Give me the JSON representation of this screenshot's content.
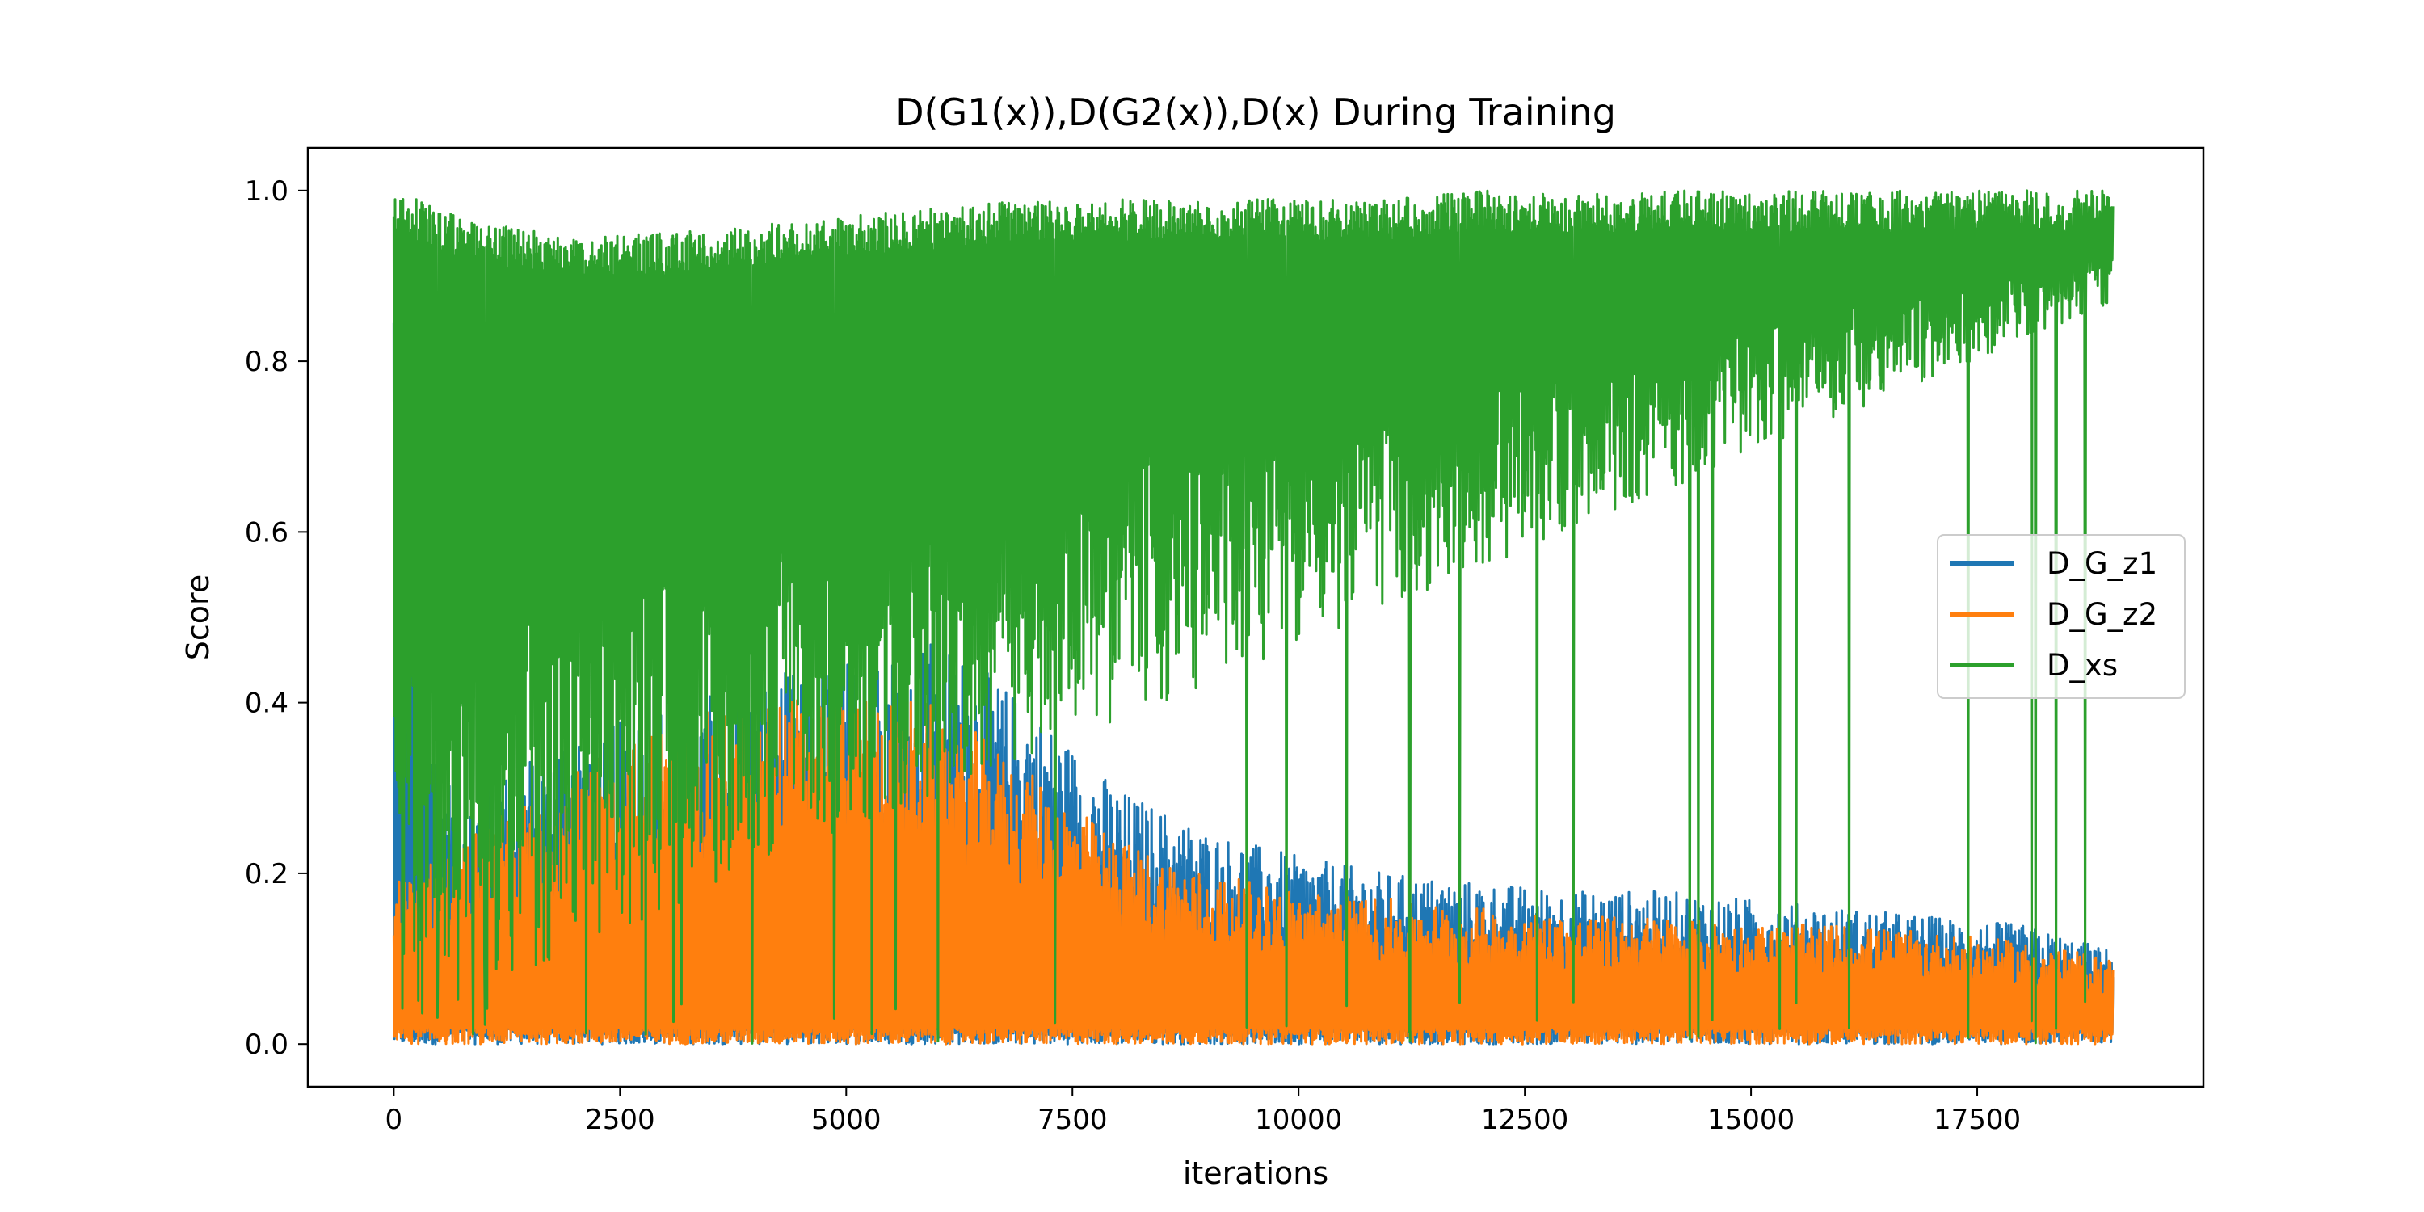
{
  "colors": {
    "D_G_z1": "#1f77b4",
    "D_G_z2": "#ff7f0e",
    "D_xs": "#2ca02c",
    "frame": "#000000",
    "legend_border": "#cccccc"
  },
  "chart_data": {
    "type": "line",
    "title": "D(G1(x)),D(G2(x)),D(x) During Training",
    "xlabel": "iterations",
    "ylabel": "Score",
    "xlim": [
      -950,
      20000
    ],
    "ylim": [
      -0.05,
      1.05
    ],
    "x_ticks": [
      0,
      2500,
      5000,
      7500,
      10000,
      12500,
      15000,
      17500
    ],
    "x_tick_labels": [
      "0",
      "2500",
      "5000",
      "7500",
      "10000",
      "12500",
      "15000",
      "17500"
    ],
    "y_ticks": [
      0.0,
      0.2,
      0.4,
      0.6,
      0.8,
      1.0
    ],
    "y_tick_labels": [
      "0.0",
      "0.2",
      "0.4",
      "0.6",
      "0.8",
      "1.0"
    ],
    "grid": false,
    "legend_position": "center-right",
    "series": [
      {
        "name": "D_G_z1",
        "x": [
          0,
          500,
          1000,
          2000,
          3000,
          4000,
          5000,
          6000,
          7000,
          8000,
          9000,
          10000,
          11000,
          12000,
          13000,
          14000,
          15000,
          16000,
          17000,
          18000,
          19000
        ],
        "values": [
          1.0,
          0.32,
          0.3,
          0.38,
          0.4,
          0.43,
          0.45,
          0.48,
          0.4,
          0.3,
          0.25,
          0.22,
          0.2,
          0.19,
          0.18,
          0.18,
          0.17,
          0.16,
          0.15,
          0.14,
          0.11
        ]
      },
      {
        "name": "D_G_z2",
        "x": [
          0,
          500,
          1000,
          2000,
          3000,
          4000,
          5000,
          6000,
          7000,
          8000,
          9000,
          10000,
          11000,
          12000,
          13000,
          14000,
          15000,
          16000,
          17000,
          18000,
          19000
        ],
        "values": [
          0.19,
          0.22,
          0.26,
          0.32,
          0.38,
          0.4,
          0.42,
          0.4,
          0.32,
          0.24,
          0.2,
          0.18,
          0.17,
          0.16,
          0.15,
          0.15,
          0.14,
          0.14,
          0.13,
          0.12,
          0.1
        ]
      },
      {
        "name": "D_xs",
        "x": [
          0,
          500,
          1000,
          2000,
          3000,
          4000,
          5000,
          6000,
          7000,
          8000,
          9000,
          10000,
          11000,
          12000,
          13000,
          14000,
          15000,
          16000,
          17000,
          18000,
          19000
        ],
        "values": [
          1.0,
          0.98,
          0.96,
          0.95,
          0.95,
          0.96,
          0.97,
          0.98,
          0.99,
          0.99,
          0.99,
          0.99,
          0.99,
          1.0,
          1.0,
          1.0,
          1.0,
          1.0,
          1.0,
          1.0,
          1.0
        ]
      }
    ]
  }
}
